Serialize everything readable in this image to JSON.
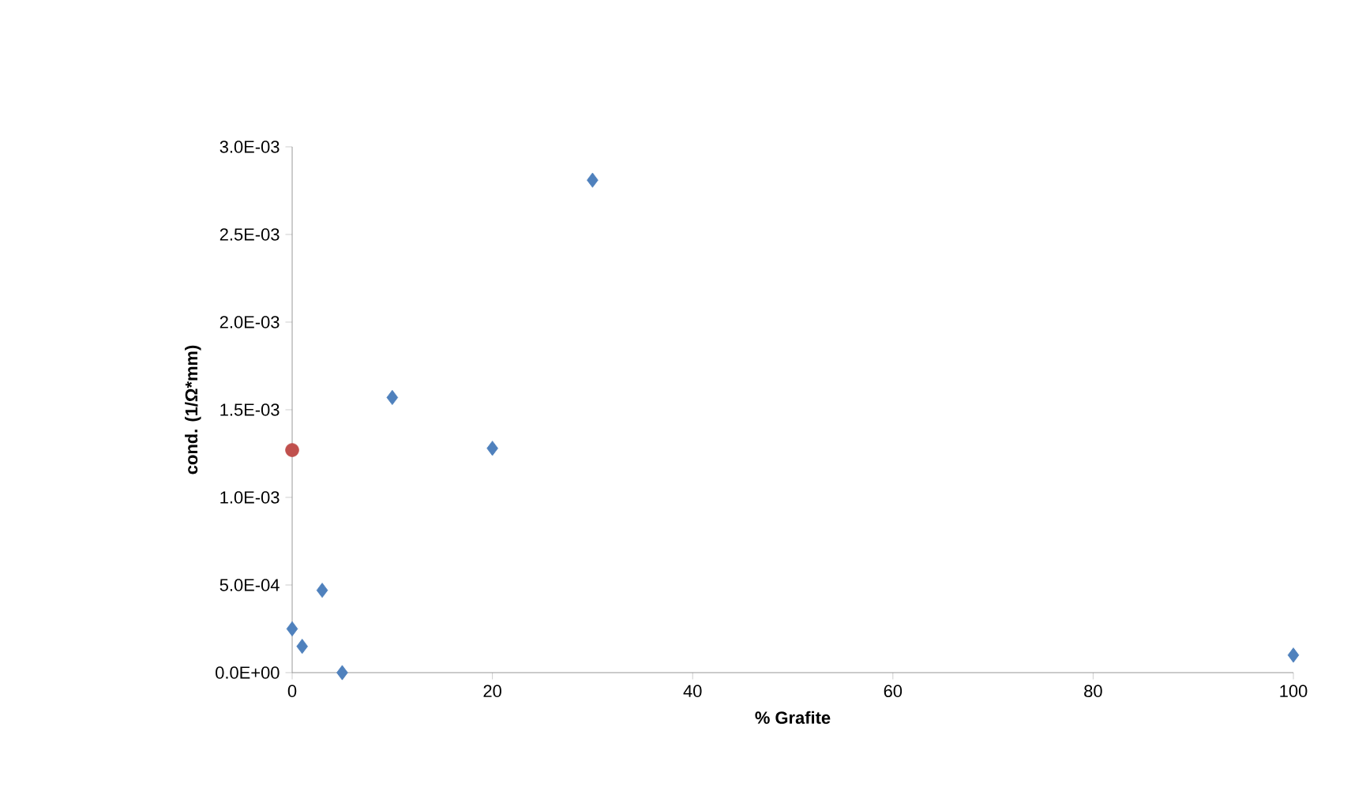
{
  "chart_data": {
    "type": "scatter",
    "xlabel": "% Grafite",
    "ylabel": "cond. (1/Ω*mm)",
    "series": [
      {
        "color": "#4f81bd",
        "marker": "diamond",
        "x": [
          0,
          1,
          3,
          5,
          10,
          20,
          30,
          100
        ],
        "values": [
          0.00025,
          0.00015,
          0.00047,
          0.0,
          0.00157,
          0.00128,
          0.00281,
          0.0001
        ]
      },
      {
        "color": "#c0504d",
        "marker": "circle",
        "x": [
          0
        ],
        "values": [
          0.00127
        ]
      }
    ],
    "xlim": [
      0,
      100
    ],
    "xticks": [
      0,
      20,
      40,
      60,
      80,
      100
    ],
    "ylim": [
      0,
      0.003
    ],
    "yticks": [
      {
        "value": 0,
        "label": "0.0E+00"
      },
      {
        "value": 0.0005,
        "label": "5.0E-04"
      },
      {
        "value": 0.001,
        "label": "1.0E-03"
      },
      {
        "value": 0.0015,
        "label": "1.5E-03"
      },
      {
        "value": 0.002,
        "label": "2.0E-03"
      },
      {
        "value": 0.0025,
        "label": "2.5E-03"
      },
      {
        "value": 0.003,
        "label": "3.0E-03"
      }
    ],
    "grid": false
  }
}
